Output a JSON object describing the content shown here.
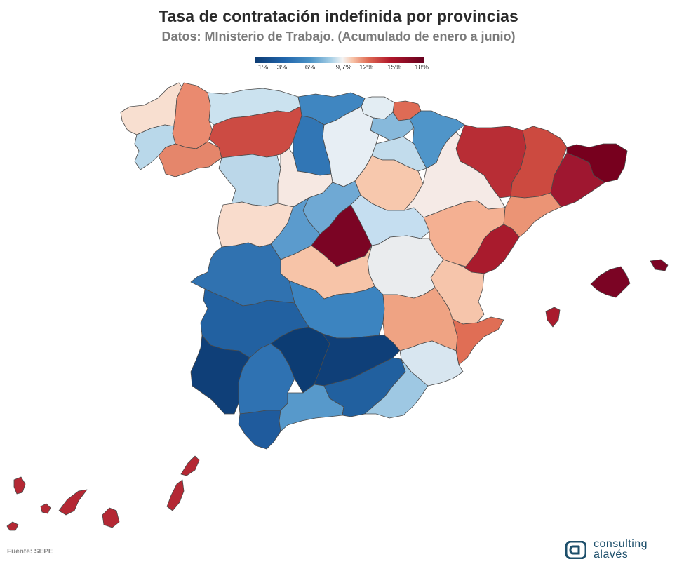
{
  "title": "Tasa de contratación indefinida por provincias",
  "subtitle": "Datos: MInisterio de Trabajo. (Acumulado de enero a junio)",
  "legend": {
    "ticks": [
      "1%",
      "3%",
      "6%",
      "9,7%",
      "12%",
      "15%",
      "18%"
    ],
    "colors": {
      "darkest_blue": "#0d3b72",
      "mid_blue": "#4b93c6",
      "neutral": "#f4f4f4",
      "mid_red": "#e06c55",
      "darkest_red": "#67001f"
    }
  },
  "source": "Fuente: SEPE",
  "logo": {
    "line1": "consulting",
    "line2": "alavés",
    "icon": "ca-logo-icon"
  },
  "map_regions": [
    {
      "name": "a-coruna",
      "fill": "#f8dfd0"
    },
    {
      "name": "lugo",
      "fill": "#ea8a6f"
    },
    {
      "name": "pontevedra",
      "fill": "#b9d8ea"
    },
    {
      "name": "ourense",
      "fill": "#e5866b"
    },
    {
      "name": "asturias",
      "fill": "#cbe2ef"
    },
    {
      "name": "cantabria",
      "fill": "#3f86c1"
    },
    {
      "name": "bizkaia",
      "fill": "#e3edf3"
    },
    {
      "name": "gipuzkoa",
      "fill": "#de6b55"
    },
    {
      "name": "alava",
      "fill": "#87b9db"
    },
    {
      "name": "navarra",
      "fill": "#4f95c9"
    },
    {
      "name": "la-rioja",
      "fill": "#c2dcec"
    },
    {
      "name": "leon",
      "fill": "#cc4b43"
    },
    {
      "name": "palencia",
      "fill": "#3176b5"
    },
    {
      "name": "burgos",
      "fill": "#e7eef4"
    },
    {
      "name": "zamora",
      "fill": "#bbd7e9"
    },
    {
      "name": "valladolid",
      "fill": "#f6e8e2"
    },
    {
      "name": "soria",
      "fill": "#f7c8ad"
    },
    {
      "name": "segovia",
      "fill": "#6fa9d4"
    },
    {
      "name": "salamanca",
      "fill": "#f9dccc"
    },
    {
      "name": "avila",
      "fill": "#5b9bcd"
    },
    {
      "name": "madrid",
      "fill": "#7b0424"
    },
    {
      "name": "guadalajara",
      "fill": "#c5def0"
    },
    {
      "name": "huesca",
      "fill": "#b82d35"
    },
    {
      "name": "zaragoza",
      "fill": "#f5eae6"
    },
    {
      "name": "teruel",
      "fill": "#f4b092"
    },
    {
      "name": "lleida",
      "fill": "#cc4a40"
    },
    {
      "name": "girona",
      "fill": "#77001e"
    },
    {
      "name": "barcelona",
      "fill": "#9f1730"
    },
    {
      "name": "tarragona",
      "fill": "#eb9475"
    },
    {
      "name": "castellon",
      "fill": "#a91b2d"
    },
    {
      "name": "valencia",
      "fill": "#f6c5ab"
    },
    {
      "name": "cuenca",
      "fill": "#eaecee"
    },
    {
      "name": "caceres",
      "fill": "#3072b0"
    },
    {
      "name": "toledo",
      "fill": "#f7c4a8"
    },
    {
      "name": "badajoz",
      "fill": "#2261a1"
    },
    {
      "name": "ciudad-real",
      "fill": "#3c84c0"
    },
    {
      "name": "albacete",
      "fill": "#efa383"
    },
    {
      "name": "alicante",
      "fill": "#e06e55"
    },
    {
      "name": "murcia",
      "fill": "#d8e6f0"
    },
    {
      "name": "cordoba",
      "fill": "#0c3c73"
    },
    {
      "name": "jaen",
      "fill": "#0f3f78"
    },
    {
      "name": "huelva",
      "fill": "#0f3f78"
    },
    {
      "name": "sevilla",
      "fill": "#2f72b2"
    },
    {
      "name": "cadiz",
      "fill": "#1f5b9d"
    },
    {
      "name": "malaga",
      "fill": "#5799cb"
    },
    {
      "name": "granada",
      "fill": "#21609f"
    },
    {
      "name": "almeria",
      "fill": "#9ec8e3"
    },
    {
      "name": "mallorca",
      "fill": "#7b0424"
    },
    {
      "name": "menorca",
      "fill": "#7b0424"
    },
    {
      "name": "ibiza",
      "fill": "#a91b2d"
    },
    {
      "name": "canarias",
      "fill": "#b42834"
    }
  ]
}
